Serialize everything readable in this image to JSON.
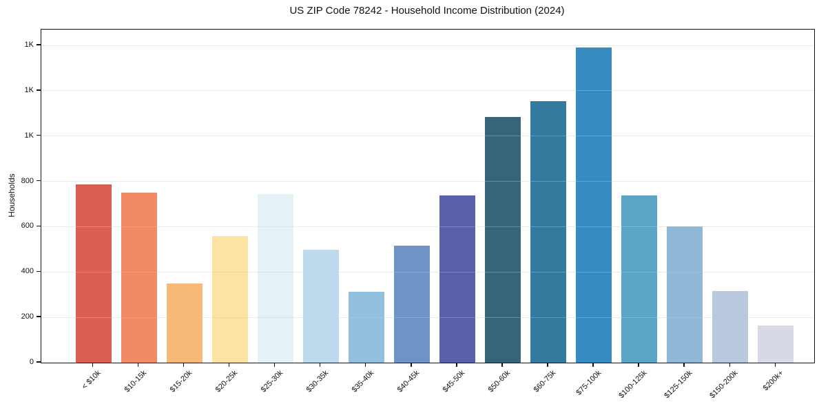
{
  "chart_data": {
    "type": "bar",
    "title": "US ZIP Code 78242 - Household Income Distribution (2024)",
    "xlabel": "",
    "ylabel": "Households",
    "categories": [
      "< $10k",
      "$10-15k",
      "$15-20k",
      "$20-25k",
      "$25-30k",
      "$30-35k",
      "$35-40k",
      "$40-45k",
      "$45-50k",
      "$50-60k",
      "$60-75k",
      "$75-100k",
      "$100-125k",
      "$125-150k",
      "$150-200k",
      "$200k+"
    ],
    "values": [
      788,
      751,
      348,
      558,
      745,
      497,
      312,
      515,
      739,
      1085,
      1155,
      1391,
      739,
      600,
      315,
      164
    ],
    "bar_colors": [
      "#d95f55",
      "#f28a68",
      "#f8b877",
      "#fce3a2",
      "#e5f1f4",
      "#bcdaeb",
      "#93c0dd",
      "#6d94c5",
      "#5a60ab",
      "#36647a",
      "#337b9e",
      "#368cc0",
      "#5ba5c9",
      "#90b7d6",
      "#b9c8de",
      "#d8d9e6"
    ],
    "ylim": [
      0,
      1470
    ],
    "yticks": {
      "values": [
        0,
        200,
        400,
        600,
        800,
        1000,
        1200,
        1400
      ],
      "labels": [
        "0",
        "200",
        "400",
        "600",
        "800",
        "1K",
        "1K",
        "1K"
      ]
    },
    "grid": "horizontal",
    "grid_color": "#e8e8e8",
    "axis_color": "#111111",
    "background": "#ffffff"
  }
}
